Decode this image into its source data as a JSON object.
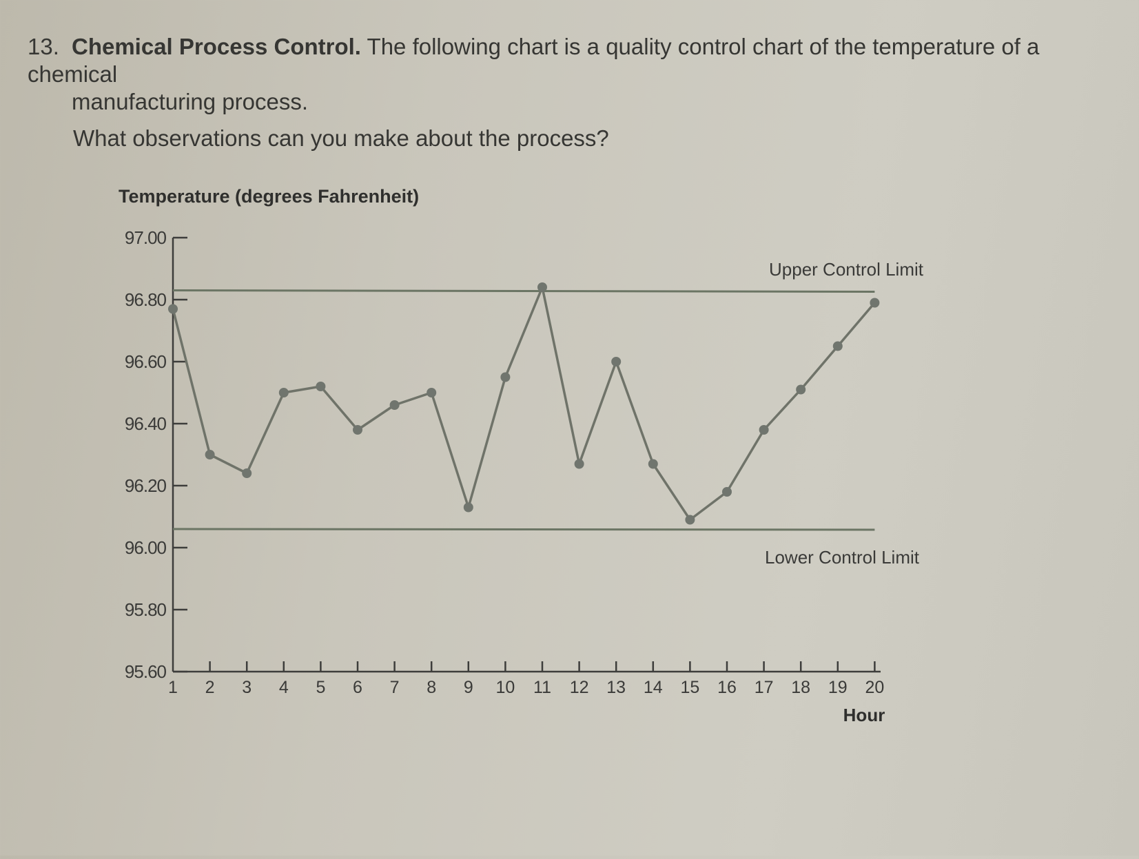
{
  "question": {
    "number": "13.",
    "title": "Chemical Process Control.",
    "text_line1": "The following chart is a quality control chart of the temperature of a chemical",
    "text_line2": "manufacturing process.",
    "prompt": "What observations can you make about the process?"
  },
  "chart_data": {
    "type": "line",
    "title": "",
    "ylabel": "Temperature (degrees Fahrenheit)",
    "xlabel": "Hour",
    "ylim": [
      95.6,
      97.0
    ],
    "yticks": [
      "95.60",
      "95.80",
      "96.00",
      "96.20",
      "96.40",
      "96.60",
      "96.80",
      "97.00"
    ],
    "x": [
      1,
      2,
      3,
      4,
      5,
      6,
      7,
      8,
      9,
      10,
      11,
      12,
      13,
      14,
      15,
      16,
      17,
      18,
      19,
      20
    ],
    "xticks": [
      "1",
      "2",
      "3",
      "4",
      "5",
      "6",
      "7",
      "8",
      "9",
      "10",
      "11",
      "12",
      "13",
      "14",
      "15",
      "16",
      "17",
      "18",
      "19",
      "20"
    ],
    "values": [
      96.77,
      96.3,
      96.24,
      96.5,
      96.52,
      96.38,
      96.46,
      96.5,
      96.13,
      96.55,
      96.84,
      96.27,
      96.6,
      96.27,
      96.09,
      96.18,
      96.38,
      96.51,
      96.65,
      96.79
    ],
    "upper_control_limit": {
      "label": "Upper Control Limit",
      "value": 96.83
    },
    "lower_control_limit": {
      "label": "Lower Control Limit",
      "value": 96.06
    },
    "grid": false,
    "colors": {
      "line": "#6f7369",
      "marker": "#70756e",
      "limit": "#6b7564",
      "axis": "#3d3d3b"
    }
  }
}
